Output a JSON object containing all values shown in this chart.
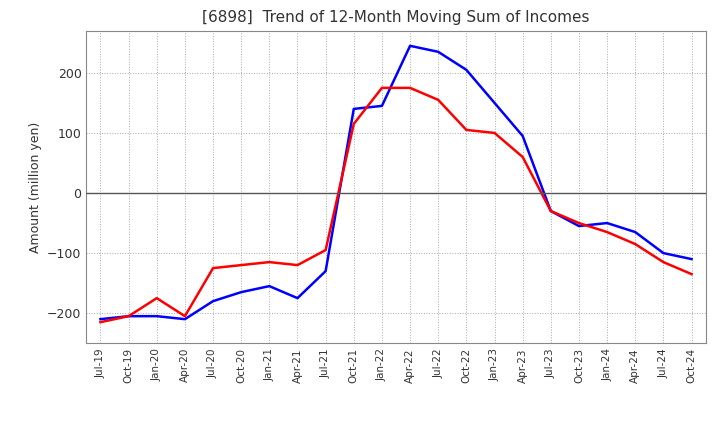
{
  "title": "[6898]  Trend of 12-Month Moving Sum of Incomes",
  "ylabel": "Amount (million yen)",
  "ylim": [
    -250,
    270
  ],
  "yticks": [
    -200,
    -100,
    0,
    100,
    200
  ],
  "background_color": "#ffffff",
  "plot_bg_color": "#ffffff",
  "grid_color": "#aaaaaa",
  "ordinary_income_color": "#0000ff",
  "net_income_color": "#ff0000",
  "x_labels": [
    "Jul-19",
    "Oct-19",
    "Jan-20",
    "Apr-20",
    "Jul-20",
    "Oct-20",
    "Jan-21",
    "Apr-21",
    "Jul-21",
    "Oct-21",
    "Jan-22",
    "Apr-22",
    "Jul-22",
    "Oct-22",
    "Jan-23",
    "Apr-23",
    "Jul-23",
    "Oct-23",
    "Jan-24",
    "Apr-24",
    "Jul-24",
    "Oct-24"
  ],
  "ordinary_income": [
    -210,
    -205,
    -205,
    -210,
    -180,
    -165,
    -155,
    -175,
    -130,
    140,
    145,
    245,
    235,
    205,
    150,
    95,
    -30,
    -55,
    -50,
    -65,
    -100,
    -110
  ],
  "net_income": [
    -215,
    -205,
    -175,
    -205,
    -125,
    -120,
    -115,
    -120,
    -95,
    115,
    175,
    175,
    155,
    105,
    100,
    60,
    -30,
    -50,
    -65,
    -85,
    -115,
    -135
  ]
}
